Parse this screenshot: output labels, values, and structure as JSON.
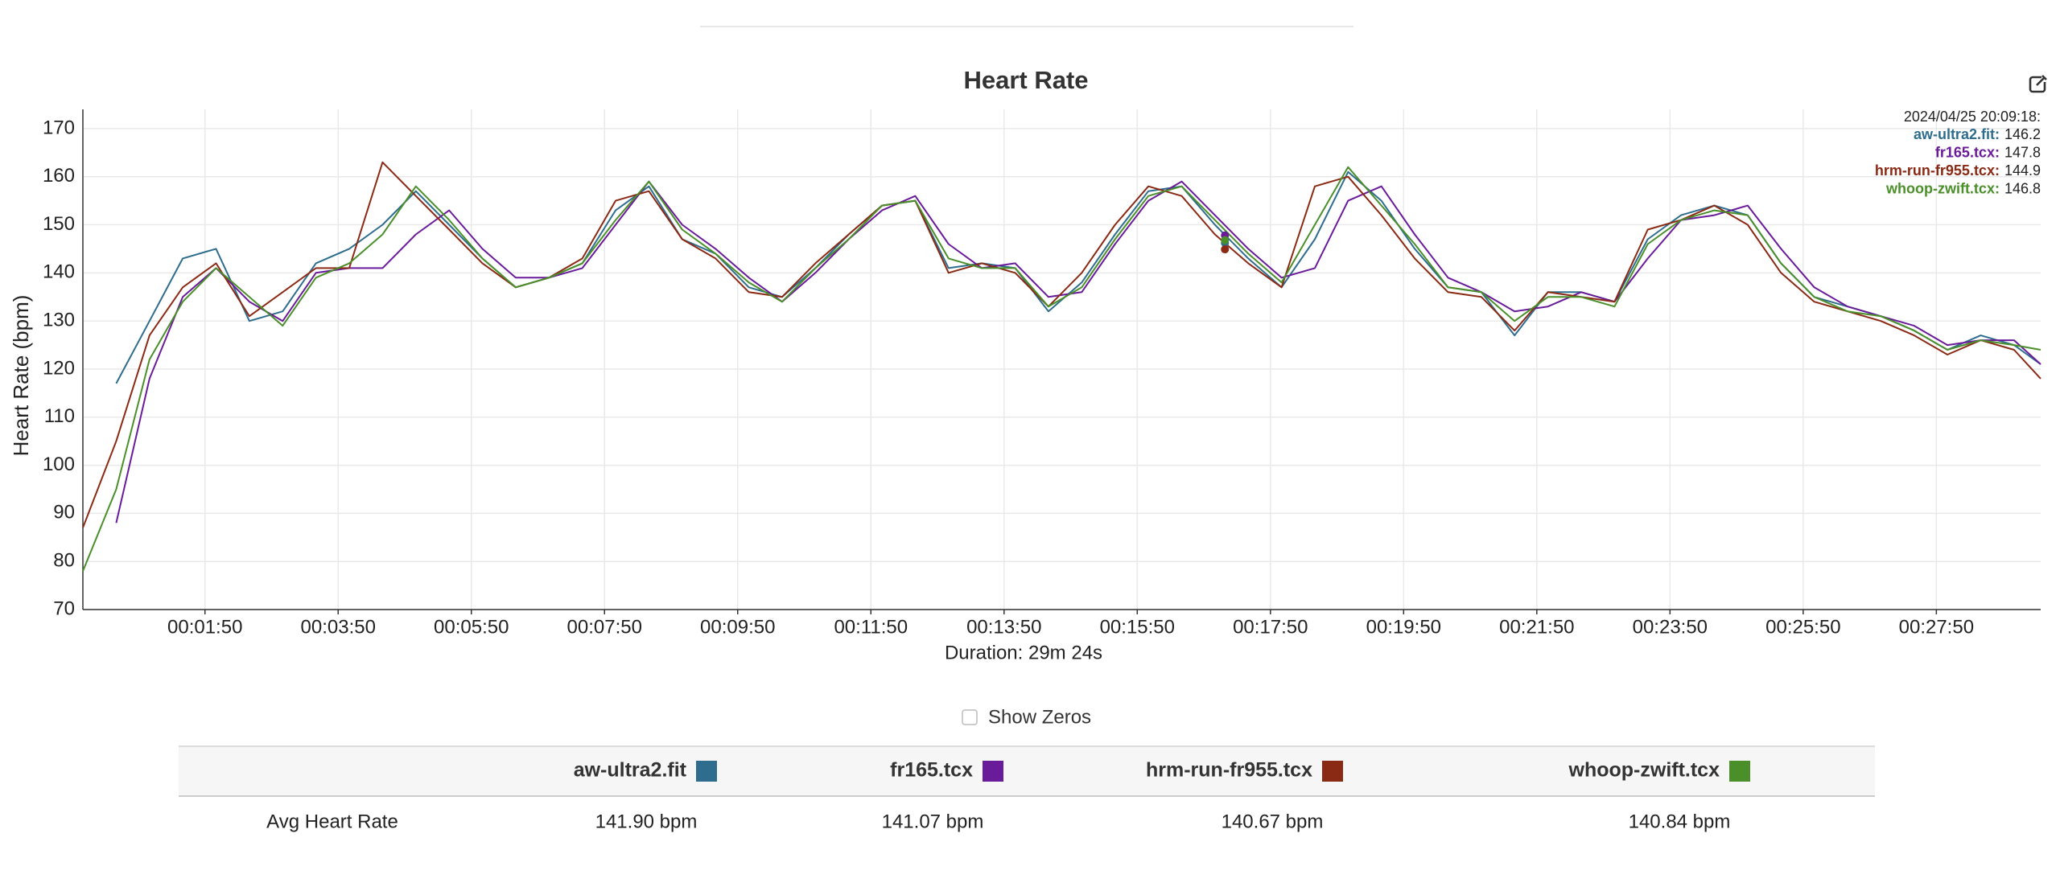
{
  "chart_data": {
    "type": "line",
    "title": "Heart Rate",
    "y_label": "Heart Rate (bpm)",
    "x_label": "Duration: 29m 24s",
    "xlim": [
      0,
      1764
    ],
    "ylim": [
      70,
      174
    ],
    "xticks": [
      {
        "value": 110,
        "label": "00:01:50"
      },
      {
        "value": 230,
        "label": "00:03:50"
      },
      {
        "value": 350,
        "label": "00:05:50"
      },
      {
        "value": 470,
        "label": "00:07:50"
      },
      {
        "value": 590,
        "label": "00:09:50"
      },
      {
        "value": 710,
        "label": "00:11:50"
      },
      {
        "value": 830,
        "label": "00:13:50"
      },
      {
        "value": 950,
        "label": "00:15:50"
      },
      {
        "value": 1070,
        "label": "00:17:50"
      },
      {
        "value": 1190,
        "label": "00:19:50"
      },
      {
        "value": 1310,
        "label": "00:21:50"
      },
      {
        "value": 1430,
        "label": "00:23:50"
      },
      {
        "value": 1550,
        "label": "00:25:50"
      },
      {
        "value": 1670,
        "label": "00:27:50"
      }
    ],
    "yticks": [
      70,
      80,
      90,
      100,
      110,
      120,
      130,
      140,
      150,
      160,
      170
    ],
    "grid": true,
    "x": [
      0,
      30,
      60,
      90,
      120,
      150,
      180,
      210,
      240,
      270,
      300,
      330,
      360,
      390,
      420,
      450,
      480,
      510,
      540,
      570,
      600,
      630,
      660,
      690,
      720,
      750,
      780,
      810,
      840,
      870,
      900,
      930,
      960,
      990,
      1020,
      1050,
      1080,
      1110,
      1140,
      1170,
      1200,
      1230,
      1260,
      1290,
      1320,
      1350,
      1380,
      1410,
      1440,
      1470,
      1500,
      1530,
      1560,
      1590,
      1620,
      1650,
      1680,
      1710,
      1740,
      1764
    ],
    "series": [
      {
        "name": "aw-ultra2.fit",
        "color": "#2e6d8e",
        "values": [
          null,
          117,
          130,
          143,
          145,
          130,
          132,
          142,
          145,
          150,
          157,
          150,
          143,
          137,
          139,
          142,
          153,
          158,
          147,
          144,
          137,
          135,
          141,
          148,
          154,
          155,
          141,
          142,
          141,
          132,
          138,
          148,
          157,
          158,
          150,
          143,
          137,
          147,
          161,
          155,
          145,
          137,
          136,
          127,
          136,
          136,
          134,
          147,
          152,
          154,
          152,
          142,
          135,
          133,
          131,
          128,
          124,
          127,
          125,
          121
        ]
      },
      {
        "name": "fr165.tcx",
        "color": "#6a1b9a",
        "values": [
          null,
          88,
          118,
          135,
          141,
          134,
          130,
          140,
          141,
          141,
          148,
          153,
          145,
          139,
          139,
          141,
          150,
          159,
          150,
          145,
          139,
          134,
          140,
          147,
          153,
          156,
          146,
          141,
          142,
          135,
          136,
          146,
          155,
          159,
          152,
          145,
          139,
          141,
          155,
          158,
          148,
          139,
          136,
          132,
          133,
          136,
          134,
          143,
          151,
          152,
          154,
          145,
          137,
          133,
          131,
          129,
          125,
          126,
          126,
          121
        ]
      },
      {
        "name": "hrm-run-fr955.tcx",
        "color": "#8b2a14",
        "values": [
          87,
          105,
          127,
          137,
          142,
          131,
          136,
          141,
          141,
          163,
          156,
          149,
          142,
          137,
          139,
          143,
          155,
          157,
          147,
          143,
          136,
          135,
          142,
          148,
          154,
          155,
          140,
          142,
          140,
          133,
          140,
          150,
          158,
          156,
          148,
          142,
          137,
          158,
          160,
          152,
          143,
          136,
          135,
          128,
          136,
          135,
          134,
          149,
          151,
          154,
          150,
          140,
          134,
          132,
          130,
          127,
          123,
          126,
          124,
          118
        ]
      },
      {
        "name": "whoop-zwift.tcx",
        "color": "#4a8f2a",
        "values": [
          78,
          95,
          122,
          134,
          141,
          135,
          129,
          139,
          142,
          148,
          158,
          151,
          143,
          137,
          139,
          142,
          151,
          159,
          149,
          144,
          138,
          134,
          141,
          147,
          154,
          155,
          143,
          141,
          141,
          133,
          137,
          147,
          156,
          158,
          151,
          144,
          138,
          150,
          162,
          154,
          146,
          137,
          136,
          130,
          135,
          135,
          133,
          146,
          151,
          153,
          152,
          142,
          135,
          132,
          131,
          128,
          124,
          126,
          125,
          124
        ]
      }
    ],
    "tooltip": {
      "title": "2024/04/25 20:09:18:",
      "x": 1029,
      "entries": [
        {
          "label": "aw-ultra2.fit:",
          "value": 146.2
        },
        {
          "label": "fr165.tcx:",
          "value": 147.8
        },
        {
          "label": "hrm-run-fr955.tcx:",
          "value": 144.9
        },
        {
          "label": "whoop-zwift.tcx:",
          "value": 146.8
        }
      ]
    }
  },
  "controls": {
    "show_zeros": "Show Zeros"
  },
  "table": {
    "row_label": "Avg Heart Rate",
    "values": [
      "141.90 bpm",
      "141.07 bpm",
      "140.67 bpm",
      "140.84 bpm"
    ]
  }
}
